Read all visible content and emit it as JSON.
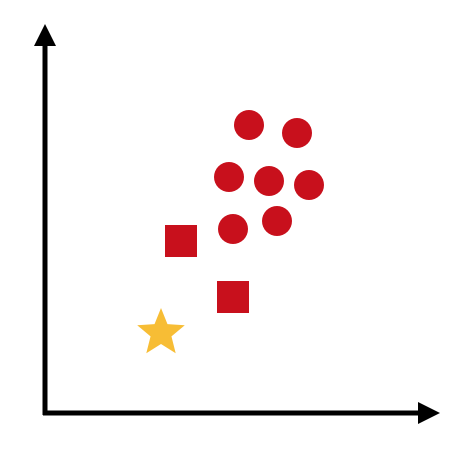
{
  "diagram": {
    "axes": {
      "color": "#000000",
      "x_axis": {
        "direction": "right",
        "arrowhead": "filled"
      },
      "y_axis": {
        "direction": "up",
        "arrowhead": "filled"
      }
    },
    "colors": {
      "circle": "#c8101c",
      "square": "#c8101c",
      "star": "#f7bd35"
    },
    "points": [
      {
        "shape": "circle",
        "x": 5.1,
        "y": 7.2
      },
      {
        "shape": "circle",
        "x": 6.3,
        "y": 7.0
      },
      {
        "shape": "circle",
        "x": 4.6,
        "y": 5.9
      },
      {
        "shape": "circle",
        "x": 5.6,
        "y": 5.8
      },
      {
        "shape": "circle",
        "x": 6.6,
        "y": 5.7
      },
      {
        "shape": "circle",
        "x": 4.7,
        "y": 4.6
      },
      {
        "shape": "circle",
        "x": 5.8,
        "y": 4.8
      },
      {
        "shape": "square",
        "x": 3.4,
        "y": 4.3
      },
      {
        "shape": "square",
        "x": 4.7,
        "y": 2.9
      },
      {
        "shape": "star",
        "x": 2.9,
        "y": 2.0
      }
    ]
  }
}
